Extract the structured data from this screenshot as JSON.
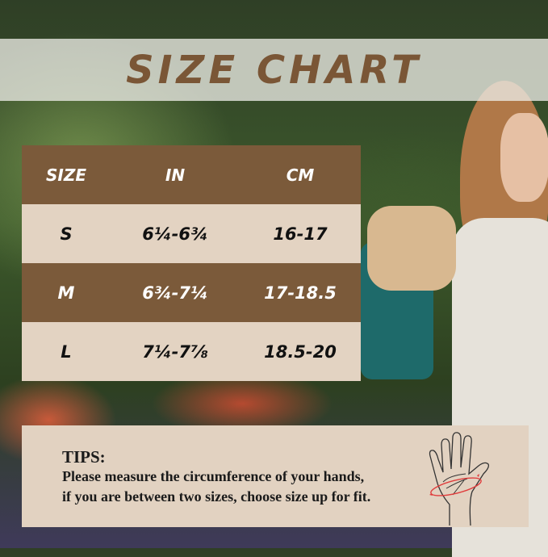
{
  "title": "SIZE CHART",
  "table": {
    "headers": [
      "SIZE",
      "IN",
      "CM"
    ],
    "rows": [
      {
        "size": "S",
        "in": "6¼-6¾",
        "cm": "16-17"
      },
      {
        "size": "M",
        "in": "6¾-7¼",
        "cm": "17-18.5"
      },
      {
        "size": "L",
        "in": "7¼-7⅞",
        "cm": "18.5-20"
      }
    ]
  },
  "tips": {
    "title": "TIPS:",
    "line1": "Please measure the circumference of your hands,",
    "line2": "if you are between two sizes, choose size up for fit.",
    "icon": "hand-measure-icon"
  },
  "colors": {
    "brown": "#7b5a3a",
    "beige": "#e3d3c2",
    "title": "#7a5636",
    "arrow": "#e03c3c"
  }
}
